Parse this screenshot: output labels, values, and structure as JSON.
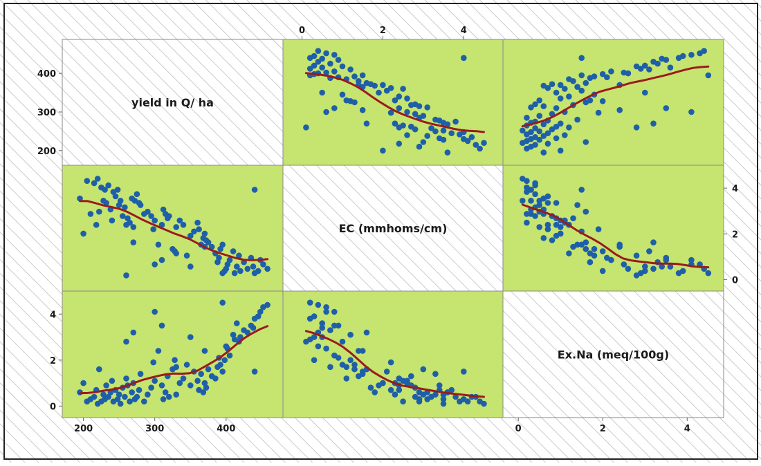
{
  "chart_data": {
    "type": "scatter",
    "subtype": "scatterplot-matrix",
    "title": "",
    "variables": [
      {
        "name": "yield in Q/ ha",
        "range": [
          180,
          470
        ],
        "ticks": [
          200,
          300,
          400
        ]
      },
      {
        "name": "EC (mmhoms/cm)",
        "range": [
          -0.3,
          4.8
        ],
        "ticks": [
          0,
          2,
          4
        ]
      },
      {
        "name": "Ex.Na (meq/100g)",
        "range": [
          -0.2,
          4.7
        ],
        "ticks": [
          0,
          2,
          4
        ]
      }
    ],
    "observations": {
      "yield": [
        458,
        452,
        448,
        445,
        440,
        438,
        435,
        430,
        425,
        420,
        418,
        415,
        412,
        410,
        405,
        402,
        400,
        398,
        395,
        392,
        390,
        388,
        385,
        380,
        375,
        372,
        370,
        368,
        365,
        362,
        360,
        355,
        350,
        345,
        340,
        335,
        330,
        328,
        325,
        320,
        318,
        315,
        312,
        310,
        305,
        300,
        298,
        295,
        290,
        285,
        280,
        278,
        275,
        272,
        270,
        268,
        265,
        262,
        260,
        258,
        255,
        252,
        250,
        248,
        245,
        242,
        240,
        238,
        235,
        232,
        230,
        228,
        225,
        222,
        220,
        218,
        215,
        210,
        205,
        200,
        195,
        260,
        300,
        310,
        330,
        350,
        370,
        395,
        440,
        270
      ],
      "ec": [
        0.4,
        0.6,
        0.8,
        0.3,
        0.2,
        0.5,
        0.9,
        0.4,
        0.7,
        0.3,
        1.0,
        0.5,
        0.2,
        1.2,
        0.8,
        0.6,
        0.4,
        0.3,
        1.5,
        1.3,
        0.9,
        0.7,
        1.1,
        1.4,
        1.6,
        1.7,
        2.0,
        1.8,
        1.5,
        2.2,
        2.5,
        2.1,
        1.9,
        1.0,
        2.4,
        2.6,
        2.3,
        1.2,
        1.3,
        2.8,
        2.7,
        2.9,
        3.1,
        2.4,
        1.5,
        2.6,
        2.2,
        2.8,
        3.0,
        2.9,
        3.3,
        3.4,
        3.8,
        3.5,
        2.3,
        3.6,
        2.5,
        2.7,
        2.4,
        3.2,
        2.8,
        3.5,
        3.3,
        4.0,
        3.7,
        3.9,
        2.6,
        3.1,
        4.2,
        3.4,
        4.0,
        3.5,
        4.1,
        3.0,
        4.5,
        2.4,
        4.3,
        2.9,
        4.4,
        2.0,
        3.6,
        0.1,
        0.6,
        0.8,
        1.1,
        0.5,
        1.4,
        0.2,
        4.0,
        1.6
      ],
      "exna": [
        4.4,
        4.3,
        4.1,
        3.9,
        3.8,
        3.4,
        3.5,
        3.2,
        3.3,
        3.0,
        2.8,
        3.6,
        2.9,
        3.1,
        2.2,
        2.5,
        2.6,
        2.0,
        1.5,
        1.8,
        2.1,
        1.7,
        1.2,
        1.3,
        1.6,
        0.8,
        1.0,
        0.6,
        1.4,
        0.7,
        1.1,
        1.5,
        0.9,
        1.8,
        1.2,
        1.0,
        0.5,
        2.0,
        1.6,
        0.4,
        1.3,
        0.6,
        0.3,
        0.9,
        2.4,
        1.1,
        1.9,
        0.8,
        0.5,
        0.2,
        1.4,
        0.7,
        0.4,
        0.3,
        1.0,
        0.6,
        0.2,
        0.9,
        1.2,
        0.4,
        0.8,
        0.1,
        0.5,
        0.3,
        0.7,
        0.2,
        1.1,
        0.6,
        0.4,
        0.9,
        0.3,
        0.5,
        0.2,
        1.6,
        0.1,
        0.7,
        0.4,
        0.3,
        0.2,
        1.0,
        0.6,
        2.8,
        4.1,
        3.5,
        1.7,
        3.0,
        2.4,
        4.5,
        1.5,
        3.2
      ]
    },
    "smoother_color": "#9b1b1b",
    "point_color": "#1f5fa8",
    "panel_fill": "#c5e470",
    "background": "diagonal-hatch"
  }
}
